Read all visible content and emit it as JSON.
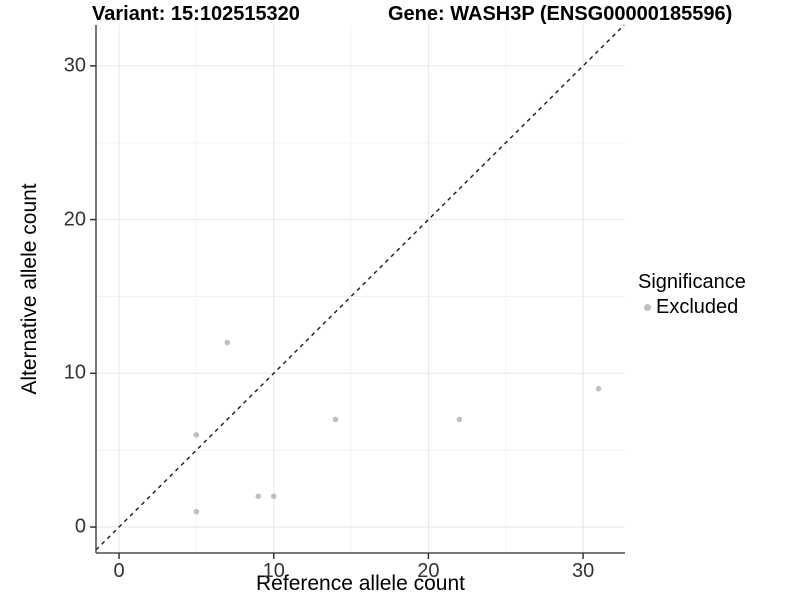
{
  "chart_data": {
    "type": "scatter",
    "title_left": "Variant: 15:102515320",
    "title_right": "Gene: WASH3P (ENSG00000185596)",
    "xlabel": "Reference allele count",
    "ylabel": "Alternative allele count",
    "xlim": [
      -1.49,
      32.71
    ],
    "ylim": [
      -1.69,
      32.66
    ],
    "xticks": [
      0,
      10,
      20,
      30
    ],
    "yticks": [
      0,
      10,
      20,
      30
    ],
    "x_minor_gridlines": [
      5,
      15,
      25
    ],
    "y_minor_gridlines": [
      5,
      15,
      25
    ],
    "grid": true,
    "legend_position": "right",
    "identity_line": {
      "slope": 1,
      "intercept": 0,
      "style": "dashed",
      "color": "#1a1a1a"
    },
    "legend": {
      "title": "Significance",
      "items": [
        {
          "label": "Excluded",
          "color": "#bfbfbf"
        }
      ]
    },
    "series": [
      {
        "name": "Excluded",
        "color": "#bfbfbf",
        "points": [
          {
            "x": 5,
            "y": 1
          },
          {
            "x": 5,
            "y": 6
          },
          {
            "x": 7,
            "y": 12
          },
          {
            "x": 9,
            "y": 2
          },
          {
            "x": 10,
            "y": 2
          },
          {
            "x": 14,
            "y": 7
          },
          {
            "x": 22,
            "y": 7
          },
          {
            "x": 31,
            "y": 9
          }
        ]
      }
    ]
  },
  "style_colors": {
    "major_gridline": "#e6e6e6",
    "minor_gridline": "#f2f2f2",
    "axis_line": "#4d4d4d",
    "tick_mark": "#333333"
  }
}
